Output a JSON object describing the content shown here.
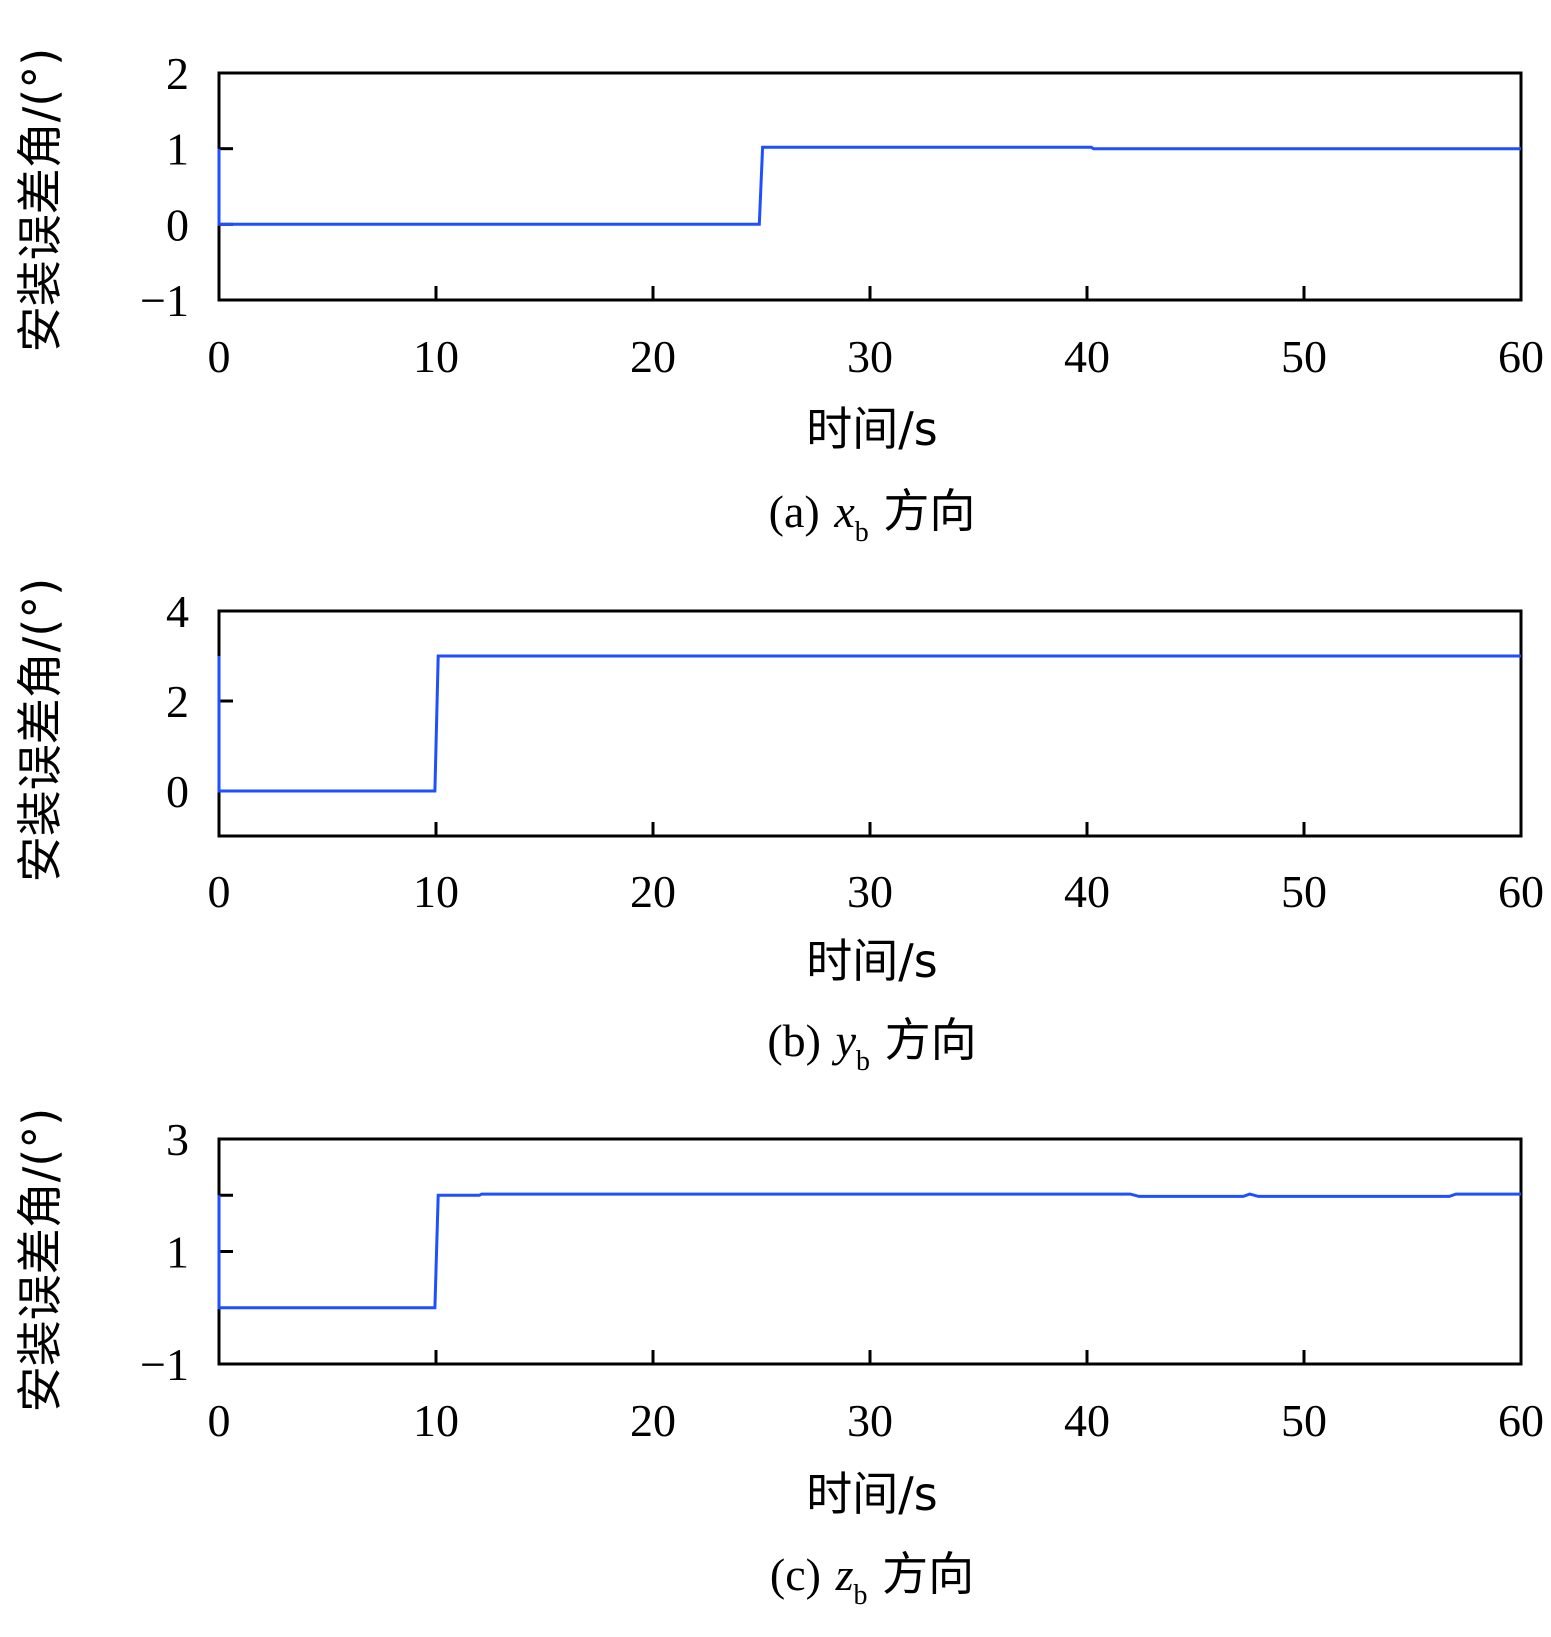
{
  "chart_data": [
    {
      "type": "line",
      "panel": "a",
      "caption_prefix": "(a)",
      "caption_var": "x",
      "caption_sub": "b",
      "caption_suffix": "方向",
      "xlabel": "时间/s",
      "ylabel": "安装误差角/(°)",
      "xlim": [
        0,
        60
      ],
      "ylim": [
        -1,
        2
      ],
      "xticks": [
        0,
        10,
        20,
        30,
        40,
        50,
        60
      ],
      "yticks": [
        -1,
        0,
        1,
        2
      ],
      "ytick_labels": [
        "−1",
        "0",
        "1",
        "2"
      ],
      "color": "#1f4fff",
      "series": [
        {
          "name": "x_b",
          "x": [
            0,
            0,
            0.04,
            24.9,
            25.05,
            40.2,
            40.3,
            60
          ],
          "y": [
            1,
            0,
            0,
            0,
            1.02,
            1.02,
            1.0,
            1.0
          ]
        }
      ]
    },
    {
      "type": "line",
      "panel": "b",
      "caption_prefix": "(b)",
      "caption_var": "y",
      "caption_sub": "b",
      "caption_suffix": "方向",
      "xlabel": "时间/s",
      "ylabel": "安装误差角/(°)",
      "xlim": [
        0,
        60
      ],
      "ylim": [
        -1,
        4
      ],
      "xticks": [
        0,
        10,
        20,
        30,
        40,
        50,
        60
      ],
      "yticks": [
        0,
        2,
        4
      ],
      "ytick_labels": [
        "0",
        "2",
        "4"
      ],
      "color": "#1f4fff",
      "series": [
        {
          "name": "y_b",
          "x": [
            0,
            0,
            0.04,
            9.95,
            10.1,
            60
          ],
          "y": [
            3,
            0,
            0,
            0,
            3.0,
            3.0
          ]
        }
      ]
    },
    {
      "type": "line",
      "panel": "c",
      "caption_prefix": "(c)",
      "caption_var": "z",
      "caption_sub": "b",
      "caption_suffix": "方向",
      "xlabel": "时间/s",
      "ylabel": "安装误差角/(°)",
      "xlim": [
        0,
        60
      ],
      "ylim": [
        -1,
        3
      ],
      "xticks": [
        0,
        10,
        20,
        30,
        40,
        50,
        60
      ],
      "yticks": [
        -1,
        1,
        3
      ],
      "ytick_labels": [
        "−1",
        "1",
        "3"
      ],
      "minor_yticks": [
        2
      ],
      "color": "#1f4fff",
      "series": [
        {
          "name": "z_b",
          "x": [
            0,
            0,
            0.04,
            9.95,
            10.1,
            12.0,
            12.1,
            42.0,
            42.4,
            47.2,
            47.5,
            47.9,
            56.7,
            57.0,
            60
          ],
          "y": [
            2,
            0,
            0,
            0,
            2.0,
            2.0,
            2.02,
            2.02,
            1.98,
            1.98,
            2.02,
            1.98,
            1.98,
            2.02,
            2.02
          ]
        }
      ]
    }
  ]
}
